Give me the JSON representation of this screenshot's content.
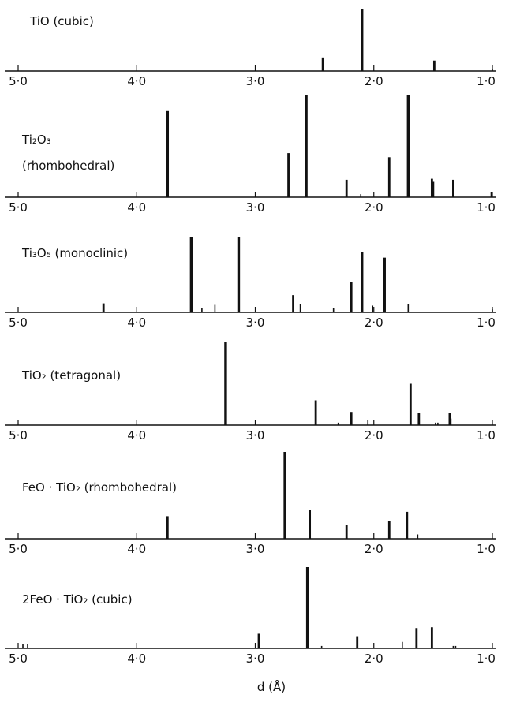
{
  "xlabel": "d (Å)",
  "chart_data": [
    {
      "type": "bar",
      "title": "TiO (cubic)",
      "title_lines": [
        "TiO  (cubic)"
      ],
      "xlim": [
        5.0,
        1.0
      ],
      "x_reversed": true,
      "ylim": [
        0,
        100
      ],
      "tick_values": [
        5.0,
        4.0,
        3.0,
        2.0,
        1.0
      ],
      "tick_labels": [
        "5·0",
        "4·0",
        "3·0",
        "2·0",
        "1·0"
      ],
      "x": [
        2.43,
        2.1,
        1.49,
        1.0
      ],
      "values": [
        22,
        100,
        17,
        3
      ]
    },
    {
      "type": "bar",
      "title": "Ti2O3 (rhombohedral)",
      "title_lines": [
        "Ti₂O₃",
        "(rhombohedral)"
      ],
      "xlim": [
        5.0,
        1.0
      ],
      "x_reversed": true,
      "ylim": [
        0,
        100
      ],
      "tick_values": [
        5.0,
        4.0,
        3.0,
        2.0,
        1.0
      ],
      "tick_labels": [
        "5·0",
        "4·0",
        "3·0",
        "2·0",
        "1·0"
      ],
      "x": [
        3.74,
        2.72,
        2.57,
        2.23,
        2.11,
        1.87,
        1.71,
        1.51,
        1.5,
        1.33,
        1.01
      ],
      "values": [
        84,
        43,
        100,
        17,
        3,
        39,
        100,
        18,
        15,
        17,
        5
      ]
    },
    {
      "type": "bar",
      "title": "Ti3O5 (monoclinic)",
      "title_lines": [
        "Ti₃O₅  (monoclinic)"
      ],
      "xlim": [
        5.0,
        1.0
      ],
      "x_reversed": true,
      "ylim": [
        0,
        100
      ],
      "tick_values": [
        5.0,
        4.0,
        3.0,
        2.0,
        1.0
      ],
      "tick_labels": [
        "5·0",
        "4·0",
        "3·0",
        "2·0",
        "1·0"
      ],
      "x": [
        4.28,
        3.54,
        3.45,
        3.34,
        3.14,
        2.68,
        2.62,
        2.34,
        2.19,
        2.1,
        2.01,
        1.91,
        1.71,
        1.0
      ],
      "values": [
        12,
        100,
        6,
        10,
        100,
        23,
        11,
        6,
        40,
        80,
        9,
        73,
        11,
        4
      ]
    },
    {
      "type": "bar",
      "title": "TiO2 (tetragonal)",
      "title_lines": [
        "TiO₂  (tetragonal)"
      ],
      "xlim": [
        5.0,
        1.0
      ],
      "x_reversed": true,
      "ylim": [
        0,
        100
      ],
      "tick_values": [
        5.0,
        4.0,
        3.0,
        2.0,
        1.0
      ],
      "tick_labels": [
        "5·0",
        "4·0",
        "3·0",
        "2·0",
        "1·0"
      ],
      "x": [
        3.25,
        2.49,
        2.3,
        2.19,
        2.05,
        1.69,
        1.62,
        1.48,
        1.46,
        1.36,
        1.35
      ],
      "values": [
        100,
        30,
        3,
        16,
        6,
        50,
        15,
        3,
        3,
        15,
        8
      ]
    },
    {
      "type": "bar",
      "title": "FeO·TiO2 (rhombohedral)",
      "title_lines": [
        "FeO · TiO₂   (rhombohedral)"
      ],
      "xlim": [
        5.0,
        1.0
      ],
      "x_reversed": true,
      "ylim": [
        0,
        100
      ],
      "tick_values": [
        5.0,
        4.0,
        3.0,
        2.0,
        1.0
      ],
      "tick_labels": [
        "5·0",
        "4·0",
        "3·0",
        "2·0",
        "1·0"
      ],
      "x": [
        3.74,
        2.75,
        2.54,
        2.23,
        1.87,
        1.72,
        1.63
      ],
      "values": [
        26,
        100,
        33,
        16,
        20,
        31,
        5
      ]
    },
    {
      "type": "bar",
      "title": "2FeO·TiO2 (cubic)",
      "title_lines": [
        "2FeO · TiO₂  (cubic)"
      ],
      "xlim": [
        5.0,
        1.0
      ],
      "x_reversed": true,
      "ylim": [
        0,
        100
      ],
      "tick_values": [
        5.0,
        4.0,
        3.0,
        2.0,
        1.0
      ],
      "tick_labels": [
        "5·0",
        "4·0",
        "3·0",
        "2·0",
        "1·0"
      ],
      "x": [
        4.96,
        4.92,
        2.97,
        2.56,
        2.44,
        2.14,
        1.76,
        1.64,
        1.51,
        1.33,
        1.31
      ],
      "values": [
        5,
        5,
        18,
        100,
        3,
        15,
        8,
        25,
        26,
        3,
        3
      ]
    }
  ]
}
